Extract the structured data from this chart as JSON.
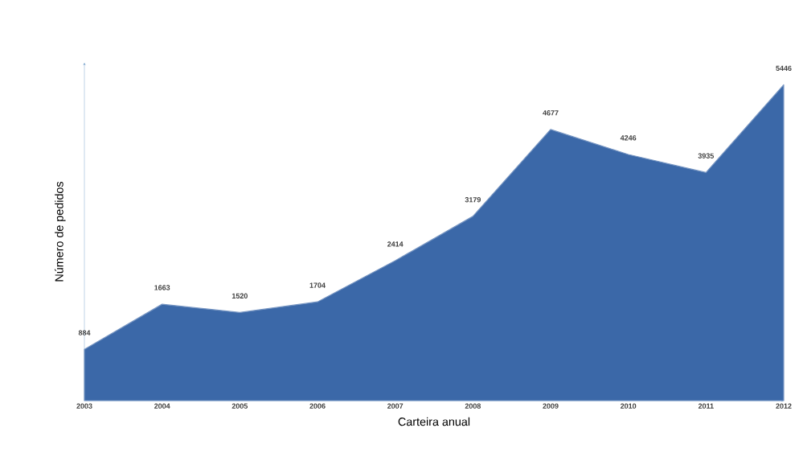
{
  "chart_data": {
    "type": "area",
    "xlabel": "Carteira anual",
    "ylabel": "Número de pedidos",
    "categories": [
      "2003",
      "2004",
      "2005",
      "2006",
      "2007",
      "2008",
      "2009",
      "2010",
      "2011",
      "2012"
    ],
    "values": [
      884,
      1663,
      1520,
      1704,
      2414,
      3179,
      4677,
      4246,
      3935,
      5446
    ],
    "color": "#3b68a8",
    "data_labels": true
  }
}
